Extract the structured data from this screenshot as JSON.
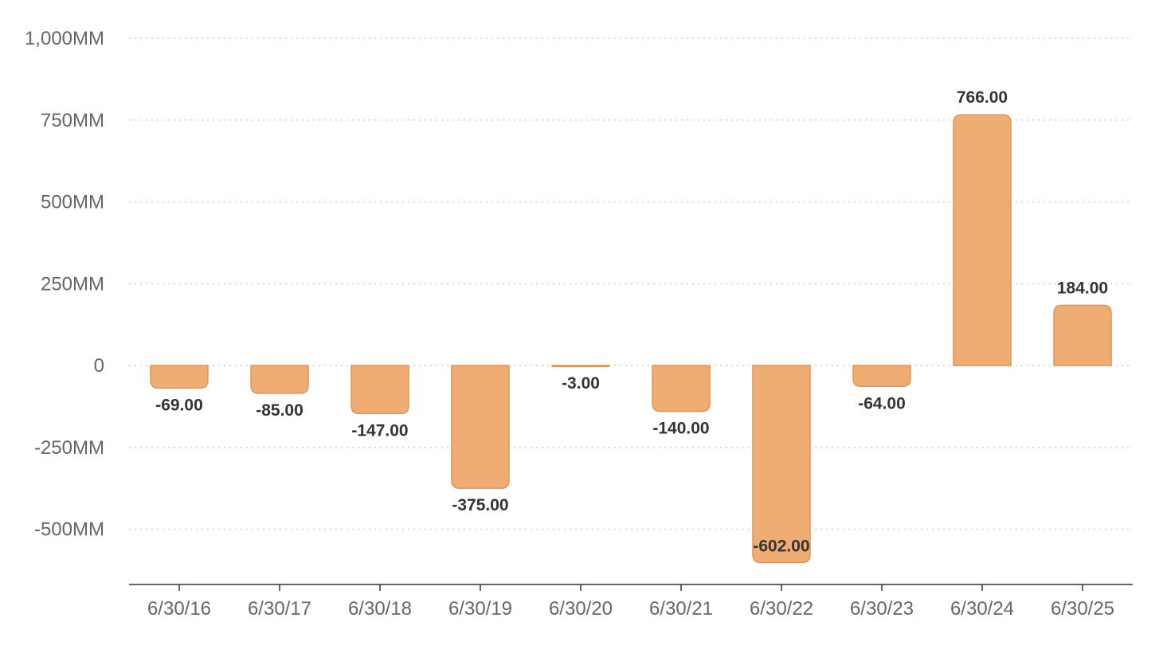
{
  "chart_data": {
    "type": "bar",
    "categories": [
      "6/30/16",
      "6/30/17",
      "6/30/18",
      "6/30/19",
      "6/30/20",
      "6/30/21",
      "6/30/22",
      "6/30/23",
      "6/30/24",
      "6/30/25"
    ],
    "series": [
      {
        "values": [
          -69,
          -85,
          -147,
          -375,
          -3,
          -140,
          -602,
          -64,
          766,
          184
        ],
        "data_labels": [
          "-69.00",
          "-85.00",
          "-147.00",
          "-375.00",
          "-3.00",
          "-140.00",
          "-602.00",
          "-64.00",
          "766.00",
          "184.00"
        ],
        "color": "#f0ad73",
        "stroke": "#e09450"
      }
    ],
    "y_ticks": [
      1000,
      750,
      500,
      250,
      0,
      -250,
      -500
    ],
    "y_tick_labels": [
      "1,000MM",
      "750MM",
      "500MM",
      "250MM",
      "0",
      "-250MM",
      "-500MM"
    ],
    "ylim": [
      -670,
      1000
    ],
    "title": "",
    "xlabel": "",
    "ylabel": "",
    "grid": true,
    "legend": "none"
  }
}
